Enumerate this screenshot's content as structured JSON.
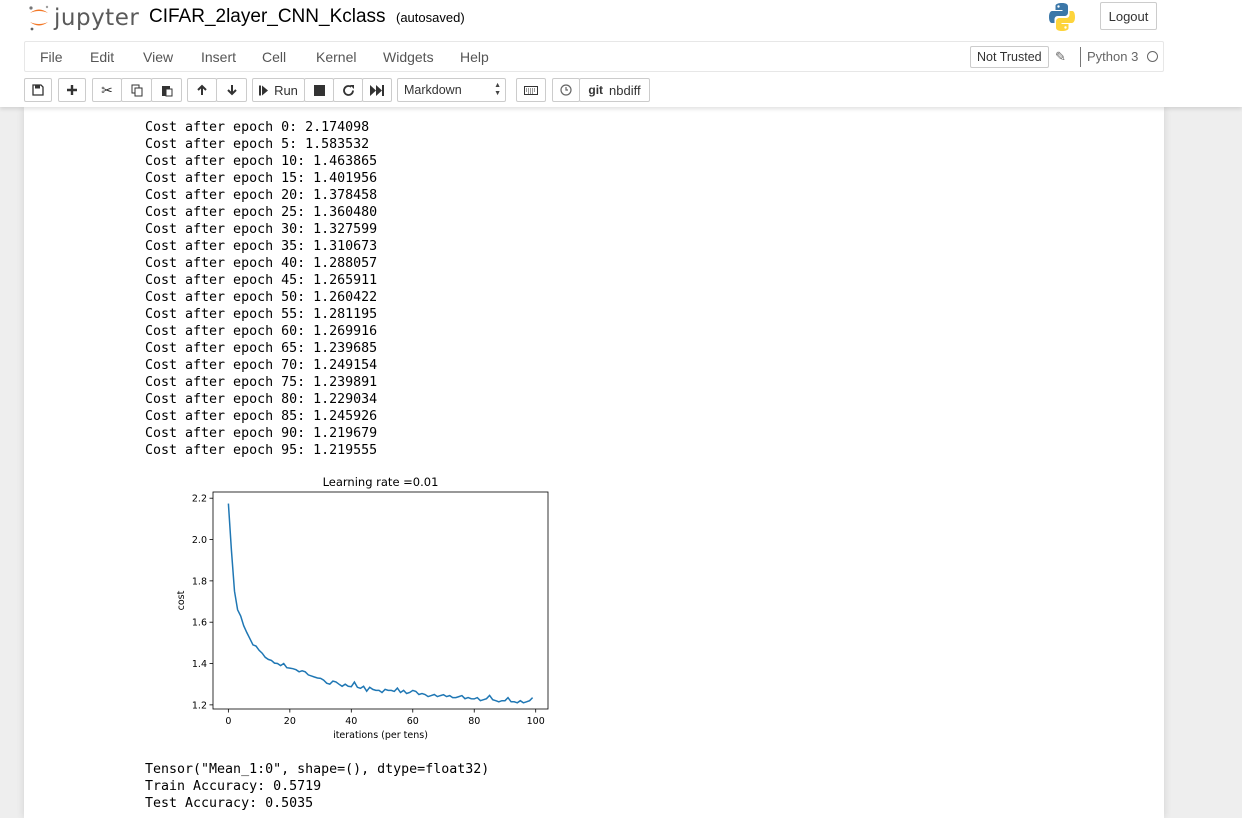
{
  "header": {
    "logo_text": "jupyter",
    "notebook_title": "CIFAR_2layer_CNN_Kclass",
    "autosave_status": "(autosaved)",
    "logout_label": "Logout"
  },
  "menubar": {
    "items": [
      "File",
      "Edit",
      "View",
      "Insert",
      "Cell",
      "Kernel",
      "Widgets",
      "Help"
    ],
    "trust_status": "Not Trusted",
    "kernel_name": "Python 3"
  },
  "toolbar": {
    "run_label": "Run",
    "cell_type": "Markdown",
    "nbdiff_label": "nbdiff",
    "git_label": "git",
    "icons": [
      "save-icon",
      "plus-icon",
      "cut-icon",
      "copy-icon",
      "paste-icon",
      "arrow-up-icon",
      "arrow-down-icon",
      "run-icon",
      "stop-icon",
      "restart-icon",
      "fast-forward-icon",
      "keyboard-icon",
      "clock-icon"
    ]
  },
  "output": {
    "cost_lines": [
      "Cost after epoch 0: 2.174098",
      "Cost after epoch 5: 1.583532",
      "Cost after epoch 10: 1.463865",
      "Cost after epoch 15: 1.401956",
      "Cost after epoch 20: 1.378458",
      "Cost after epoch 25: 1.360480",
      "Cost after epoch 30: 1.327599",
      "Cost after epoch 35: 1.310673",
      "Cost after epoch 40: 1.288057",
      "Cost after epoch 45: 1.265911",
      "Cost after epoch 50: 1.260422",
      "Cost after epoch 55: 1.281195",
      "Cost after epoch 60: 1.269916",
      "Cost after epoch 65: 1.239685",
      "Cost after epoch 70: 1.249154",
      "Cost after epoch 75: 1.239891",
      "Cost after epoch 80: 1.229034",
      "Cost after epoch 85: 1.245926",
      "Cost after epoch 90: 1.219679",
      "Cost after epoch 95: 1.219555"
    ],
    "result_lines": [
      "Tensor(\"Mean_1:0\", shape=(), dtype=float32)",
      "Train Accuracy: 0.5719",
      "Test Accuracy: 0.5035"
    ]
  },
  "chart_data": {
    "type": "line",
    "title": "Learning rate =0.01",
    "xlabel": "iterations (per tens)",
    "ylabel": "cost",
    "xlim": [
      -5,
      104
    ],
    "ylim": [
      1.18,
      2.23
    ],
    "xticks": [
      0,
      20,
      40,
      60,
      80,
      100
    ],
    "yticks": [
      1.2,
      1.4,
      1.6,
      1.8,
      2.0,
      2.2
    ],
    "grid": false,
    "color": "#1f77b4",
    "series": [
      {
        "values": [
          2.174,
          1.95,
          1.75,
          1.66,
          1.63,
          1.583,
          1.55,
          1.52,
          1.49,
          1.485,
          1.464,
          1.45,
          1.43,
          1.42,
          1.415,
          1.402,
          1.4,
          1.39,
          1.4,
          1.38,
          1.378,
          1.375,
          1.37,
          1.36,
          1.365,
          1.36,
          1.345,
          1.34,
          1.335,
          1.33,
          1.328,
          1.32,
          1.305,
          1.3,
          1.315,
          1.311,
          1.3,
          1.29,
          1.3,
          1.29,
          1.288,
          1.31,
          1.285,
          1.28,
          1.29,
          1.266,
          1.285,
          1.275,
          1.27,
          1.27,
          1.26,
          1.275,
          1.27,
          1.27,
          1.265,
          1.281,
          1.26,
          1.27,
          1.255,
          1.26,
          1.27,
          1.265,
          1.25,
          1.255,
          1.25,
          1.24,
          1.245,
          1.25,
          1.24,
          1.245,
          1.249,
          1.24,
          1.245,
          1.235,
          1.235,
          1.24,
          1.245,
          1.23,
          1.235,
          1.23,
          1.229,
          1.235,
          1.22,
          1.225,
          1.23,
          1.246,
          1.225,
          1.22,
          1.215,
          1.22,
          1.22,
          1.235,
          1.215,
          1.215,
          1.21,
          1.22,
          1.21,
          1.215,
          1.22,
          1.235
        ]
      }
    ]
  }
}
